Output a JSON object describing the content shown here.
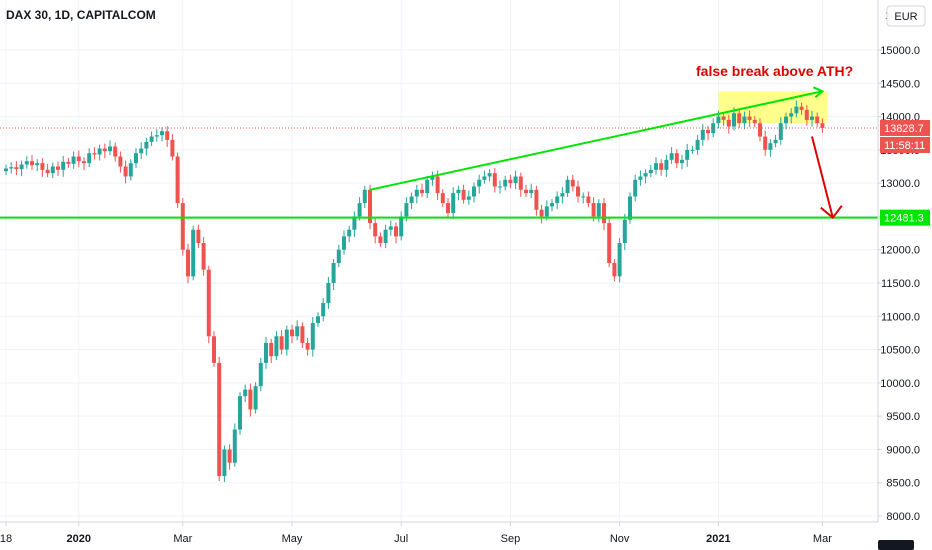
{
  "chart_data": {
    "type": "candlestick",
    "title": "DAX 30, 1D, CAPITALCOM",
    "currency": "EUR",
    "ylim": [
      7900,
      16100
    ],
    "y_ticks": [
      "15000.0",
      "14500.0",
      "14000.0",
      "13500.0",
      "13000.0",
      "12500.0",
      "12000.0",
      "11500.0",
      "11000.0",
      "10500.0",
      "10000.0",
      "9500.0",
      "9000.0",
      "8500.0",
      "8000.0"
    ],
    "y_tick_values": [
      15000,
      14500,
      14000,
      13500,
      13000,
      12500,
      12000,
      11500,
      11000,
      10500,
      10000,
      9500,
      9000,
      8500,
      8000
    ],
    "y_top_partial": "1",
    "x_ticks": [
      {
        "label": "18",
        "bold": false,
        "idx": 0
      },
      {
        "label": "2020",
        "bold": true,
        "idx": 14
      },
      {
        "label": "Mar",
        "bold": false,
        "idx": 34
      },
      {
        "label": "May",
        "bold": false,
        "idx": 55
      },
      {
        "label": "Jul",
        "bold": false,
        "idx": 76
      },
      {
        "label": "Sep",
        "bold": false,
        "idx": 97
      },
      {
        "label": "Nov",
        "bold": false,
        "idx": 118
      },
      {
        "label": "2021",
        "bold": true,
        "idx": 137
      },
      {
        "label": "Mar",
        "bold": false,
        "idx": 157
      }
    ],
    "candle_closes": [
      13220,
      13240,
      13210,
      13280,
      13330,
      13270,
      13300,
      13200,
      13150,
      13250,
      13200,
      13320,
      13290,
      13400,
      13330,
      13300,
      13450,
      13430,
      13520,
      13480,
      13550,
      13400,
      13250,
      13100,
      13300,
      13450,
      13520,
      13620,
      13700,
      13720,
      13780,
      13650,
      13400,
      12700,
      12000,
      11600,
      12300,
      12100,
      11700,
      10700,
      10300,
      8600,
      9000,
      8800,
      9300,
      9800,
      9900,
      9600,
      9950,
      10300,
      10600,
      10400,
      10700,
      10500,
      10800,
      10700,
      10850,
      10600,
      10500,
      10900,
      11000,
      11200,
      11500,
      11800,
      12000,
      12200,
      12300,
      12500,
      12700,
      12900,
      12400,
      12200,
      12100,
      12300,
      12350,
      12200,
      12500,
      12700,
      12800,
      12900,
      12850,
      13050,
      13100,
      12850,
      12700,
      12550,
      12850,
      12900,
      12750,
      12800,
      12950,
      13050,
      13100,
      13150,
      12950,
      12950,
      13050,
      13000,
      13100,
      12900,
      12850,
      12900,
      12600,
      12500,
      12650,
      12700,
      12800,
      12850,
      13050,
      12950,
      12800,
      12800,
      12700,
      12500,
      12700,
      12400,
      11800,
      11600,
      12100,
      12450,
      12800,
      13050,
      13100,
      13150,
      13200,
      13300,
      13200,
      13350,
      13450,
      13300,
      13350,
      13500,
      13500,
      13650,
      13800,
      13750,
      13900,
      14000,
      13950,
      13850,
      14050,
      13900,
      14000,
      13950,
      13900,
      13700,
      13500,
      13600,
      13650,
      13900,
      14000,
      14050,
      14150,
      14100,
      13950,
      14000,
      13900,
      13828.7
    ],
    "current_price": "13828.7",
    "countdown": "11:58:11",
    "support_level": "12481.3",
    "support_value": 12481.3,
    "trendline": {
      "from": {
        "idx": 70,
        "value": 12900
      },
      "to": {
        "idx": 157,
        "value": 14380
      }
    },
    "ath_zone": {
      "from_idx": 137,
      "to_idx": 158,
      "low": 13900,
      "high": 14380
    },
    "annotation": "false break above ATH?",
    "projection": {
      "from": {
        "idx": 155,
        "value": 13700
      },
      "to": {
        "idx": 159,
        "value": 12481.3
      }
    }
  },
  "colors": {
    "up": "#26a69a",
    "down": "#ef5350",
    "support": "#00e600",
    "trend": "#00e600",
    "zone": "#ffff66",
    "annotation": "#e00000",
    "price_tag": "#ef5350",
    "support_tag": "#00e600",
    "grid": "#f0f3fa",
    "axis_line": "#d1d4dc"
  },
  "icons": {
    "logo": "tradingview-logo-icon"
  }
}
